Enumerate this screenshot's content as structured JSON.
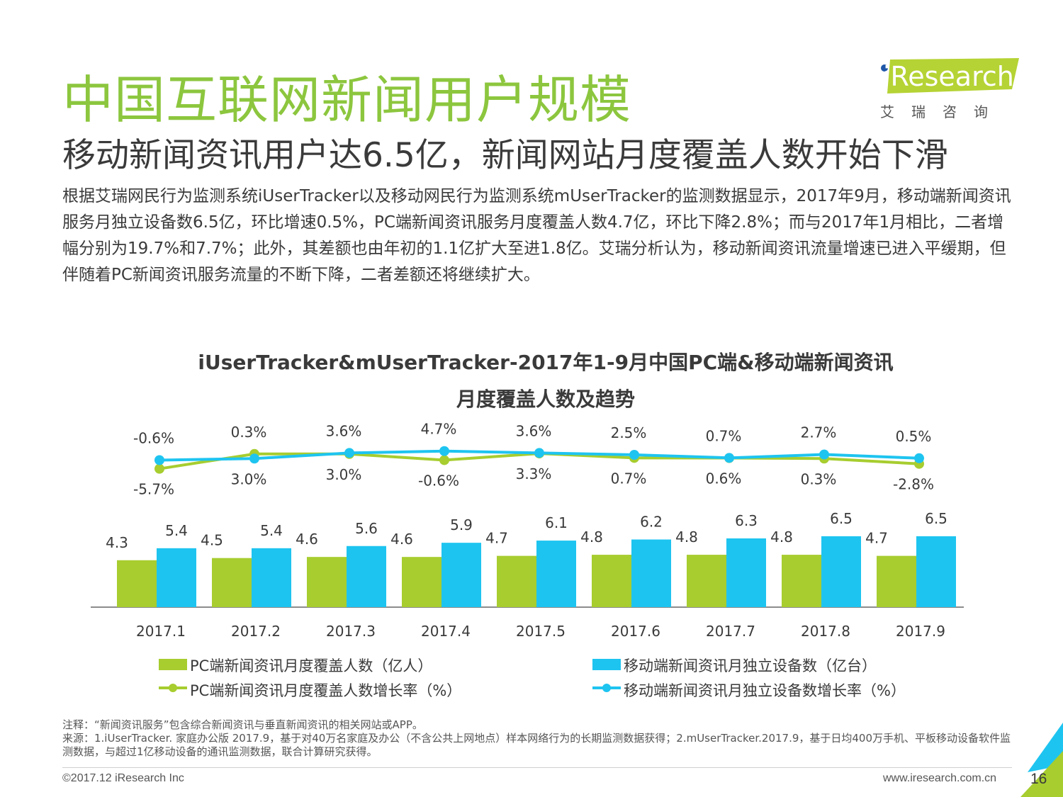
{
  "header": {
    "title": "中国互联网新闻用户规模",
    "subtitle": "移动新闻资讯用户达6.5亿，新闻网站月度覆盖人数开始下滑",
    "paragraph": "根据艾瑞网民行为监测系统iUserTracker以及移动网民行为监测系统mUserTracker的监测数据显示，2017年9月，移动端新闻资讯服务月独立设备数6.5亿，环比增速0.5%，PC端新闻资讯服务月度覆盖人数4.7亿，环比下降2.8%；而与2017年1月相比，二者增幅分别为19.7%和7.7%；此外，其差额也由年初的1.1亿扩大至进1.8亿。艾瑞分析认为，移动新闻资讯流量增速已进入平缓期，但伴随着PC新闻资讯服务流量的不断下降，二者差额还将继续扩大。"
  },
  "logo": {
    "brand": "iResearch",
    "sub": "艾瑞咨询"
  },
  "colors": {
    "green": "#a7cd2f",
    "blue": "#1ec4f0",
    "title_green": "#8cc63e",
    "axis": "#8c8c8c"
  },
  "chart_data": {
    "type": "bar",
    "title_line1": "iUserTracker&mUserTracker-2017年1-9月中国PC端&移动端新闻资讯",
    "title_line2": "月度覆盖人数及趋势",
    "categories": [
      "2017.1",
      "2017.2",
      "2017.3",
      "2017.4",
      "2017.5",
      "2017.6",
      "2017.7",
      "2017.8",
      "2017.9"
    ],
    "series": [
      {
        "name": "PC端新闻资讯月度覆盖人数（亿人）",
        "kind": "bar",
        "color": "#a7cd2f",
        "values": [
          4.3,
          4.5,
          4.6,
          4.6,
          4.7,
          4.8,
          4.8,
          4.8,
          4.7
        ]
      },
      {
        "name": "移动端新闻资讯月独立设备数（亿台）",
        "kind": "bar",
        "color": "#1ec4f0",
        "values": [
          5.4,
          5.4,
          5.6,
          5.9,
          6.1,
          6.2,
          6.3,
          6.5,
          6.5
        ]
      },
      {
        "name": "PC端新闻资讯月度覆盖人数增长率（%）",
        "kind": "line",
        "color": "#a7cd2f",
        "values": [
          -5.7,
          3.0,
          3.0,
          -0.6,
          3.3,
          0.7,
          0.6,
          0.3,
          -2.8
        ],
        "labels": [
          "-5.7%",
          "3.0%",
          "3.0%",
          "-0.6%",
          "3.3%",
          "0.7%",
          "0.6%",
          "0.3%",
          "-2.8%"
        ]
      },
      {
        "name": "移动端新闻资讯月独立设备数增长率（%）",
        "kind": "line",
        "color": "#1ec4f0",
        "values": [
          -0.6,
          0.3,
          3.6,
          4.7,
          3.6,
          2.5,
          0.7,
          2.7,
          0.5
        ],
        "labels": [
          "-0.6%",
          "0.3%",
          "3.6%",
          "4.7%",
          "3.6%",
          "2.5%",
          "0.7%",
          "2.7%",
          "0.5%"
        ]
      }
    ],
    "bar_labels": {
      "pc": [
        "4.3",
        "4.5",
        "4.6",
        "4.6",
        "4.7",
        "4.8",
        "4.8",
        "4.8",
        "4.7"
      ],
      "mobile": [
        "5.4",
        "5.4",
        "5.6",
        "5.9",
        "6.1",
        "6.2",
        "6.3",
        "6.5",
        "6.5"
      ]
    },
    "legend_position": "bottom",
    "grid": false
  },
  "footnote": {
    "line1": "注释：“新闻资讯服务”包含综合新闻资讯与垂直新闻资讯的相关网站或APP。",
    "line2": "来源：1.iUserTracker. 家庭办公版 2017.9，基于对40万名家庭及办公（不含公共上网地点）样本网络行为的长期监测数据获得；2.mUserTracker.2017.9，基于日均400万手机、平板移动设备软件监测数据，与超过1亿移动设备的通讯监测数据，联合计算研究获得。"
  },
  "footer": {
    "copyright": "©2017.12 iResearch Inc",
    "website": "www.iresearch.com.cn",
    "page": "16"
  }
}
